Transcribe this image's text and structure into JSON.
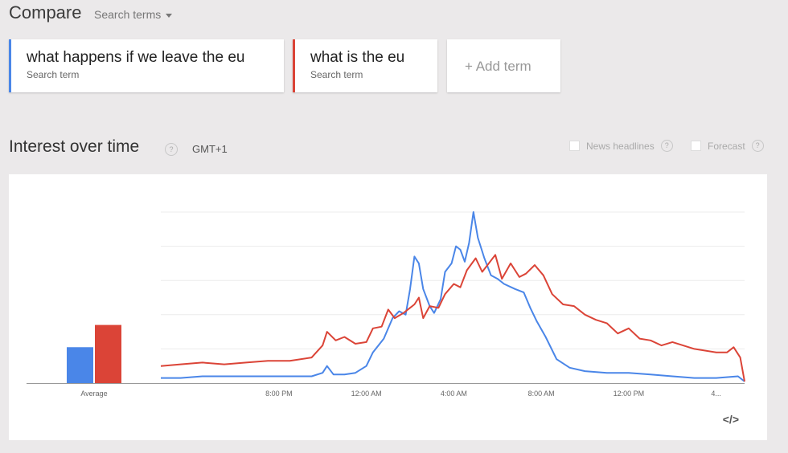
{
  "header": {
    "title": "Compare",
    "search_dropdown_label": "Search terms"
  },
  "terms": [
    {
      "term": "what happens if we leave the eu",
      "sublabel": "Search term",
      "color": "#4a86e8"
    },
    {
      "term": "what is the eu",
      "sublabel": "Search term",
      "color": "#db4437"
    }
  ],
  "add_term": {
    "label": "+ Add term"
  },
  "section": {
    "title": "Interest over time",
    "help_glyph": "?",
    "timezone": "GMT+1",
    "options": [
      {
        "label": "News headlines",
        "checked": false
      },
      {
        "label": "Forecast",
        "checked": false
      }
    ],
    "embed_glyph": "</>"
  },
  "chart_data": {
    "type": "line",
    "x_unit": "hours relative to 12:00 AM",
    "x_range": [
      -9.4,
      17.3
    ],
    "y_range": [
      0,
      100
    ],
    "grid": true,
    "x_ticks": [
      {
        "label": "8:00 PM",
        "x": -4
      },
      {
        "label": "12:00 AM",
        "x": 0
      },
      {
        "label": "4:00 AM",
        "x": 4
      },
      {
        "label": "8:00 AM",
        "x": 8
      },
      {
        "label": "12:00 PM",
        "x": 12
      },
      {
        "label": "4...",
        "x": 16
      }
    ],
    "average": {
      "label": "Average",
      "values": [
        21,
        34
      ]
    },
    "series": [
      {
        "color": "#4a86e8",
        "points": [
          [
            -9.4,
            3
          ],
          [
            -8.5,
            3
          ],
          [
            -7.5,
            4
          ],
          [
            -6.5,
            4
          ],
          [
            -5.5,
            4
          ],
          [
            -4.5,
            4
          ],
          [
            -3.5,
            4
          ],
          [
            -2.5,
            4
          ],
          [
            -2.0,
            6
          ],
          [
            -1.8,
            10
          ],
          [
            -1.5,
            5
          ],
          [
            -1.0,
            5
          ],
          [
            -0.5,
            6
          ],
          [
            0,
            10
          ],
          [
            0.3,
            18
          ],
          [
            0.8,
            26
          ],
          [
            1.2,
            38
          ],
          [
            1.5,
            42
          ],
          [
            1.8,
            40
          ],
          [
            2.0,
            55
          ],
          [
            2.2,
            74
          ],
          [
            2.4,
            70
          ],
          [
            2.6,
            55
          ],
          [
            2.9,
            45
          ],
          [
            3.1,
            41
          ],
          [
            3.4,
            49
          ],
          [
            3.6,
            65
          ],
          [
            3.9,
            70
          ],
          [
            4.1,
            80
          ],
          [
            4.3,
            78
          ],
          [
            4.5,
            71
          ],
          [
            4.7,
            82
          ],
          [
            4.9,
            100
          ],
          [
            5.1,
            85
          ],
          [
            5.4,
            73
          ],
          [
            5.7,
            63
          ],
          [
            6.0,
            61
          ],
          [
            6.3,
            58
          ],
          [
            6.8,
            55
          ],
          [
            7.2,
            53
          ],
          [
            7.5,
            44
          ],
          [
            7.8,
            36
          ],
          [
            8.2,
            27
          ],
          [
            8.7,
            14
          ],
          [
            9.3,
            9
          ],
          [
            10,
            7
          ],
          [
            11,
            6
          ],
          [
            12,
            6
          ],
          [
            13,
            5
          ],
          [
            14,
            4
          ],
          [
            15,
            3
          ],
          [
            16,
            3
          ],
          [
            17.0,
            4
          ],
          [
            17.3,
            1
          ]
        ]
      },
      {
        "color": "#db4437",
        "points": [
          [
            -9.4,
            10
          ],
          [
            -8.5,
            11
          ],
          [
            -7.5,
            12
          ],
          [
            -6.5,
            11
          ],
          [
            -5.5,
            12
          ],
          [
            -4.5,
            13
          ],
          [
            -3.5,
            13
          ],
          [
            -2.5,
            15
          ],
          [
            -2.0,
            22
          ],
          [
            -1.8,
            30
          ],
          [
            -1.4,
            25
          ],
          [
            -1.0,
            27
          ],
          [
            -0.5,
            23
          ],
          [
            0,
            24
          ],
          [
            0.3,
            32
          ],
          [
            0.7,
            33
          ],
          [
            1.0,
            43
          ],
          [
            1.3,
            38
          ],
          [
            1.7,
            41
          ],
          [
            2.2,
            46
          ],
          [
            2.4,
            50
          ],
          [
            2.6,
            38
          ],
          [
            2.9,
            45
          ],
          [
            3.3,
            44
          ],
          [
            3.6,
            52
          ],
          [
            4.0,
            58
          ],
          [
            4.3,
            56
          ],
          [
            4.6,
            66
          ],
          [
            5.0,
            73
          ],
          [
            5.3,
            65
          ],
          [
            5.6,
            70
          ],
          [
            5.9,
            75
          ],
          [
            6.2,
            61
          ],
          [
            6.6,
            70
          ],
          [
            7.0,
            62
          ],
          [
            7.3,
            64
          ],
          [
            7.7,
            69
          ],
          [
            8.1,
            63
          ],
          [
            8.5,
            52
          ],
          [
            9.0,
            46
          ],
          [
            9.5,
            45
          ],
          [
            10.0,
            40
          ],
          [
            10.5,
            37
          ],
          [
            11.0,
            35
          ],
          [
            11.5,
            29
          ],
          [
            12,
            32
          ],
          [
            12.5,
            26
          ],
          [
            13,
            25
          ],
          [
            13.5,
            22
          ],
          [
            14,
            24
          ],
          [
            15,
            20
          ],
          [
            16,
            18
          ],
          [
            16.5,
            18
          ],
          [
            16.8,
            21
          ],
          [
            17.1,
            15
          ],
          [
            17.3,
            1
          ]
        ]
      }
    ]
  }
}
